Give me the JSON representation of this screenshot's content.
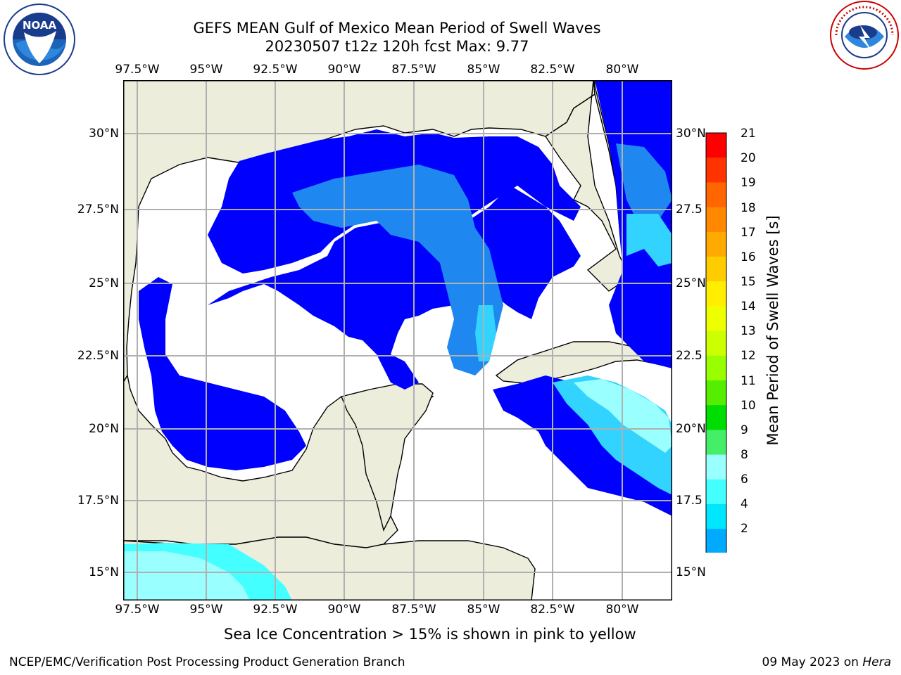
{
  "title": {
    "line1": "GEFS MEAN Gulf of Mexico Mean Period of Swell Waves",
    "line2": "20230507 t12z 120h fcst   Max: 9.77"
  },
  "map": {
    "lon_labels": [
      "97.5°W",
      "95°W",
      "92.5°W",
      "90°W",
      "87.5°W",
      "85°W",
      "82.5°W",
      "80°W"
    ],
    "lat_labels_left": [
      "30°N",
      "27.5°N",
      "25°N",
      "22.5°N",
      "20°N",
      "17.5°N",
      "15°N"
    ],
    "lat_labels_right": [
      "30°N",
      "27.5",
      "25°N",
      "22.5",
      "20°N",
      "17.5",
      "15°N"
    ],
    "colors": {
      "land": "#ededdc",
      "ocean_blank": "#ffffff",
      "period_2_4": "#0000ff",
      "period_4_6": "#1e88f0",
      "period_6_8": "#33d3ff",
      "period_8_9": "#99ffff",
      "gridline": "#b0b0b0",
      "coastline": "#000000"
    }
  },
  "colorbar": {
    "label": "Mean Period of Swell Waves [s]",
    "ticks": [
      "21",
      "20",
      "19",
      "18",
      "17",
      "16",
      "15",
      "14",
      "13",
      "12",
      "11",
      "10",
      "9",
      "8",
      "6",
      "4",
      "2"
    ],
    "colors": [
      "#ff0000",
      "#ff3300",
      "#ff6600",
      "#ff8800",
      "#ffaa00",
      "#ffcc00",
      "#ffee00",
      "#eeff00",
      "#ccff00",
      "#99ff00",
      "#55ee00",
      "#00dd00",
      "#44ee66",
      "#99ffff",
      "#44ffff",
      "#00e6ff",
      "#00aaff",
      "#0055ff"
    ]
  },
  "note": "Sea Ice Concentration > 15% is shown in pink to yellow",
  "footer": {
    "left": "NCEP/EMC/Verification Post Processing Product Generation Branch",
    "date": "09 May 2023 on ",
    "machine": "Hera"
  },
  "logos": {
    "noaa_text": "NOAA",
    "noaa_ring": "NATIONAL OCEANIC AND ATMOSPHERIC ADMINISTRATION · U.S. DEPARTMENT OF COMMERCE",
    "nws_ring": "NATIONAL WEATHER SERVICE"
  }
}
